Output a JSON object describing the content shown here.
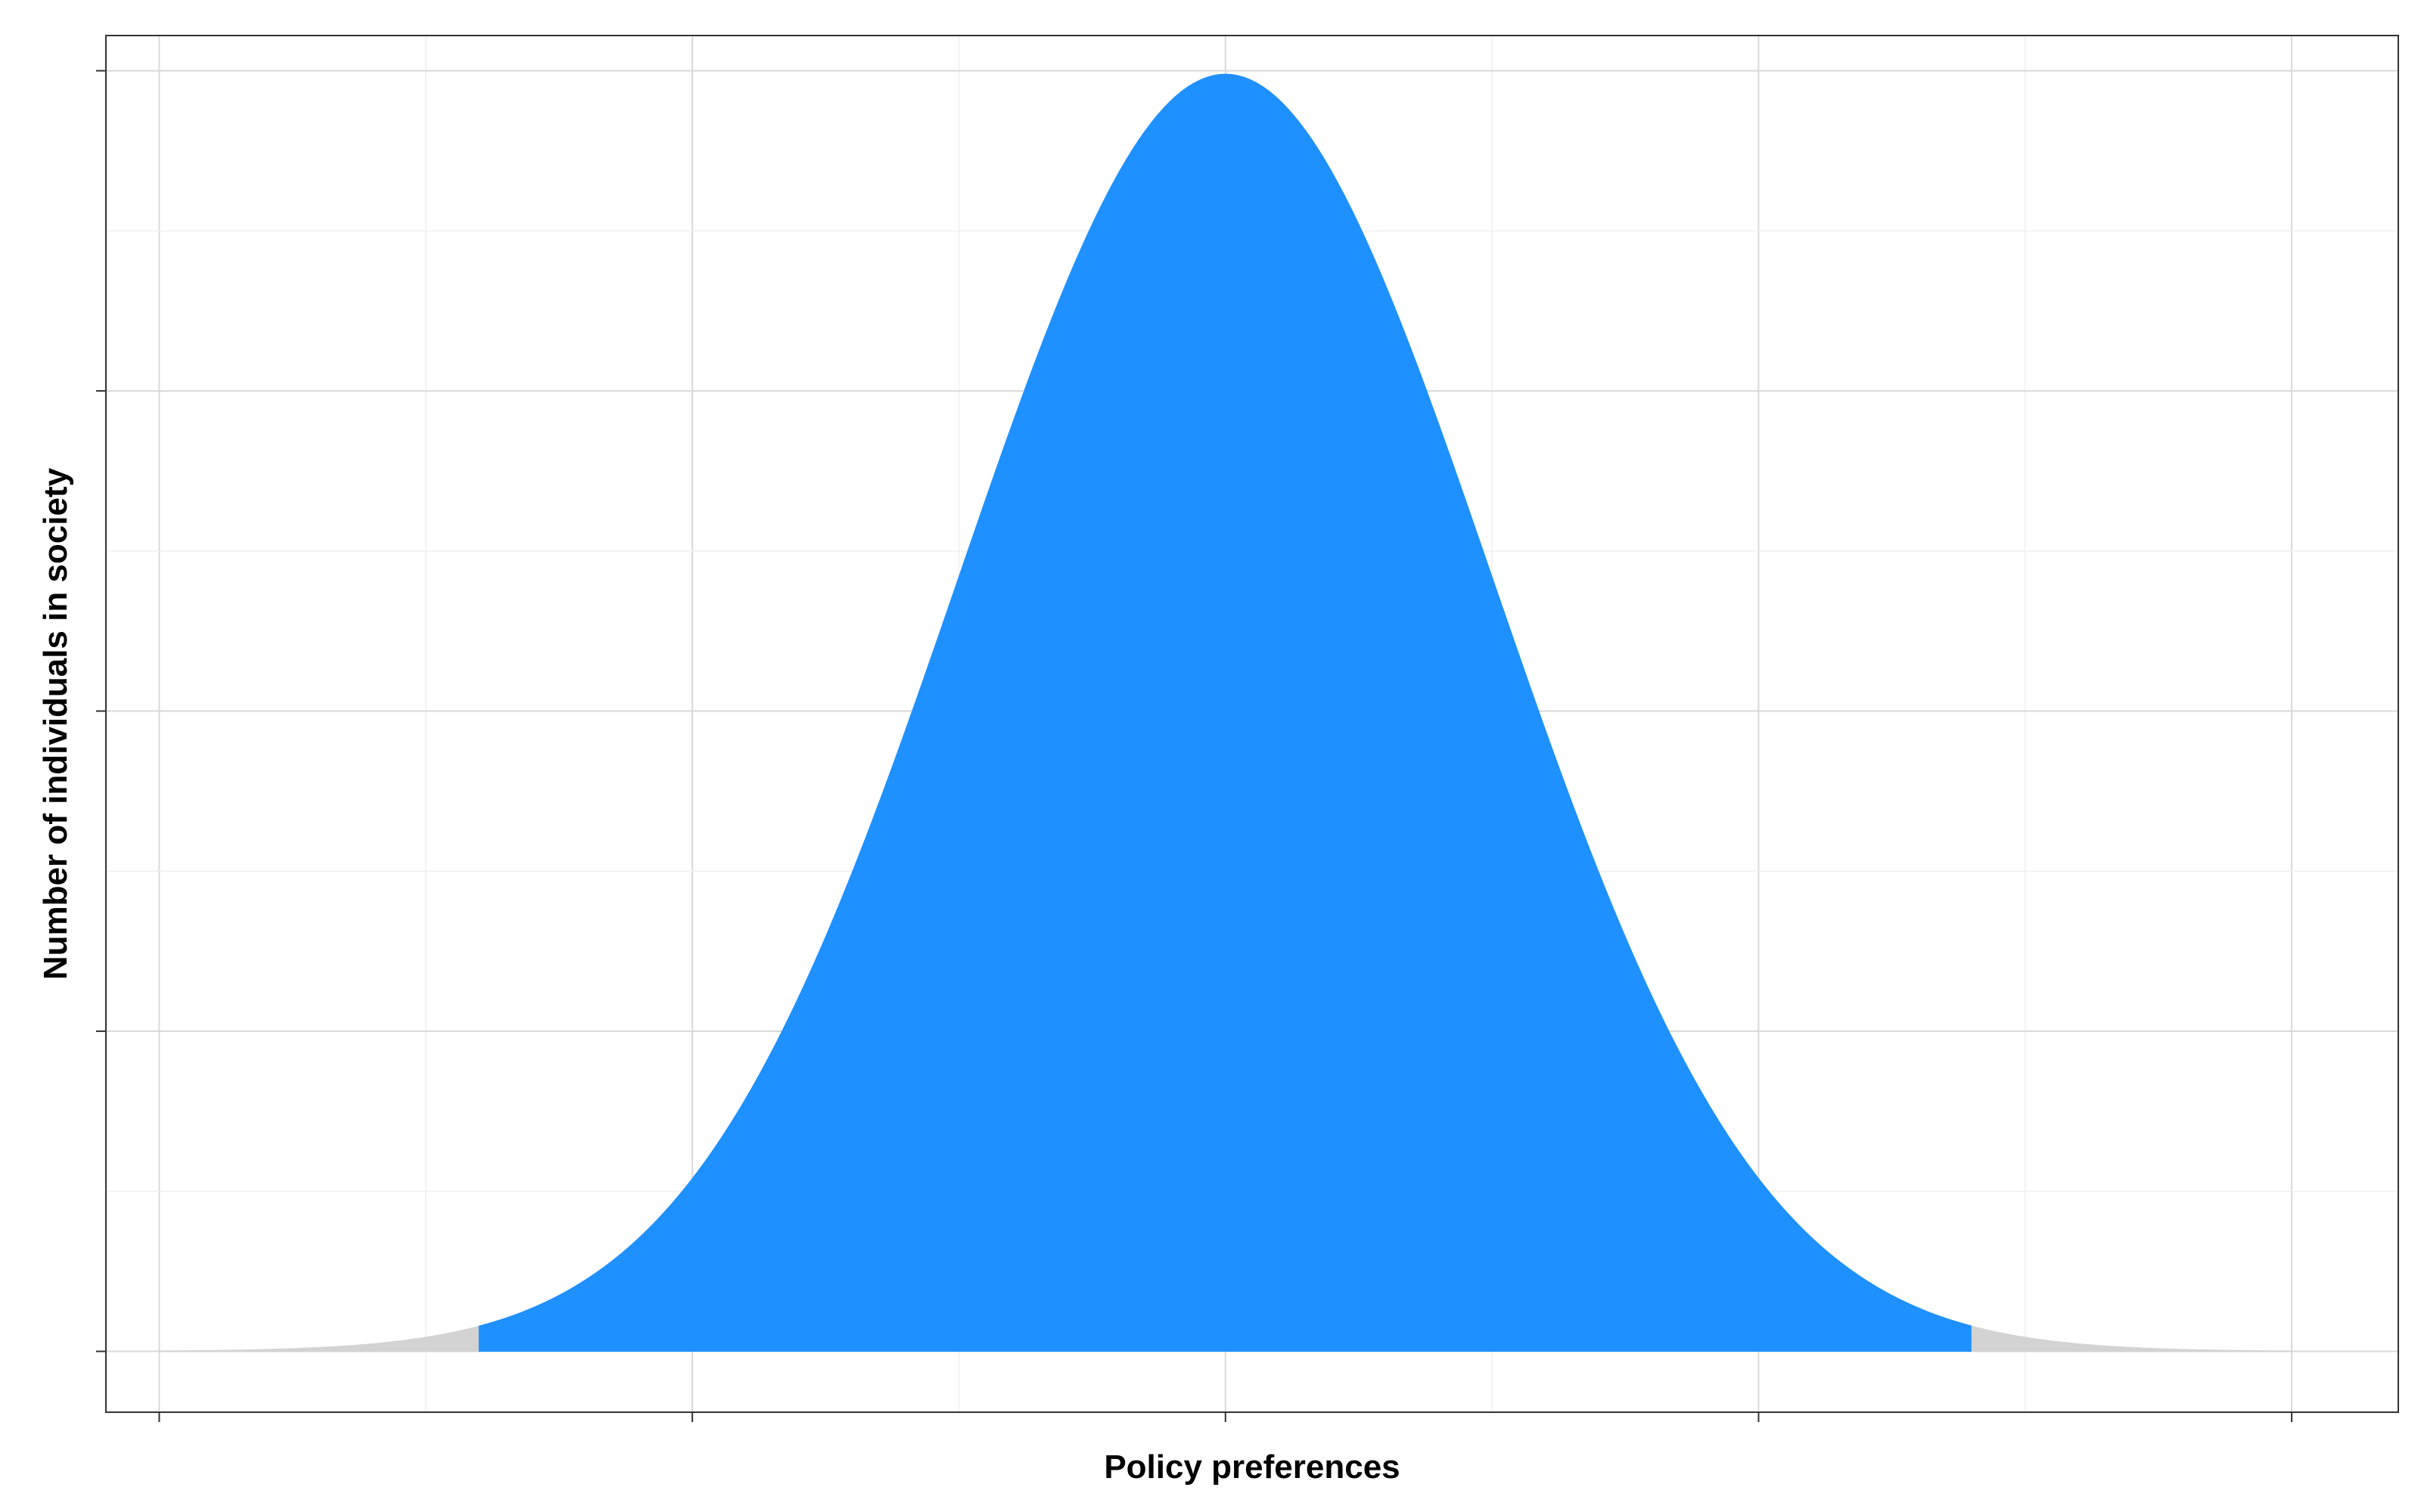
{
  "chart_data": {
    "type": "area",
    "title": "",
    "xlabel": "Policy preferences",
    "ylabel": "Number of individuals in society",
    "xlim": [
      -4.2,
      4.4
    ],
    "ylim": [
      -0.019,
      0.411
    ],
    "x_ticks": [
      -4,
      -3,
      -2,
      -1,
      0,
      1,
      2,
      3,
      4
    ],
    "x_major_ticks": [
      -4,
      -2,
      0,
      2,
      4
    ],
    "y_ticks": [
      0,
      0.1,
      0.2,
      0.3,
      0.4
    ],
    "y_major_ticks": [
      0,
      0.1,
      0.2,
      0.3,
      0.4
    ],
    "x_tick_labels_visible": false,
    "y_tick_labels_visible": false,
    "grid": true,
    "distribution": "normal",
    "mean": 0,
    "sd": 1,
    "x_range": [
      -4,
      4
    ],
    "regions": [
      {
        "range": [
          -4,
          -2.8
        ],
        "color": "#d3d3d3"
      },
      {
        "range": [
          -2.8,
          2.8
        ],
        "color": "#1e90ff"
      },
      {
        "range": [
          2.8,
          4
        ],
        "color": "#d3d3d3"
      }
    ]
  }
}
